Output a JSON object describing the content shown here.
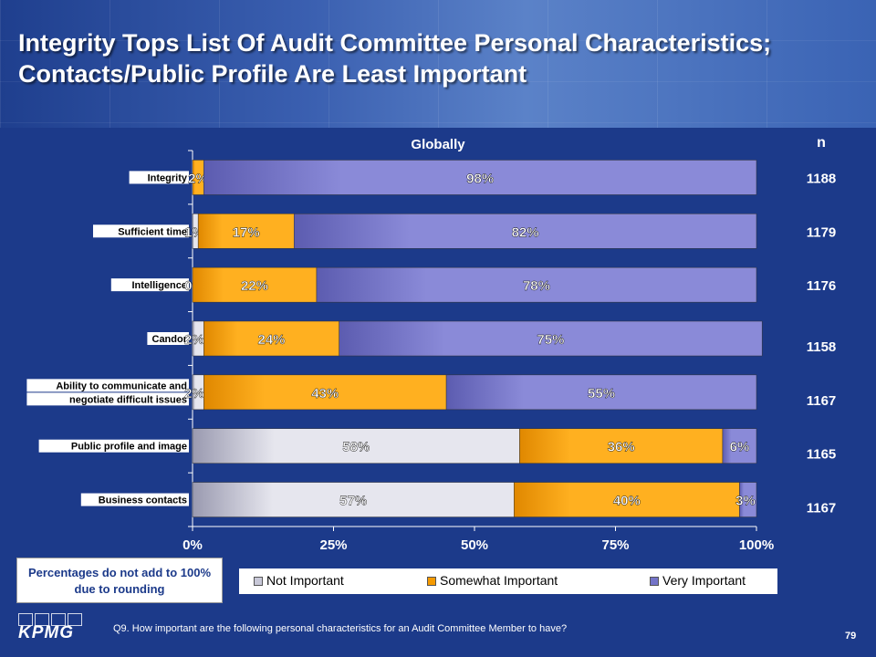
{
  "title": "Integrity Tops List Of Audit Committee Personal Characteristics; Contacts/Public Profile Are Least Important",
  "note": "Percentages do not add to 100% due to rounding",
  "footer": {
    "question": "Q9. How important are the following personal characteristics for an Audit Committee Member to have?",
    "page_number": "79",
    "logo_text": "KPMG"
  },
  "colors": {
    "not_important": "#c8c8d8",
    "somewhat_important": "#f59a00",
    "very_important": "#7474c8",
    "background": "#1c3a8a"
  },
  "chart_data": {
    "type": "bar",
    "orientation": "horizontal",
    "stacked": true,
    "title": "Globally",
    "n_header": "n",
    "categories": [
      "Integrity",
      "Sufficient time",
      "Intelligence",
      "Candor",
      "Ability to communicate and negotiate difficult issues",
      "Public profile and image",
      "Business contacts"
    ],
    "category_lines": [
      [
        "Integrity"
      ],
      [
        "Sufficient time"
      ],
      [
        "Intelligence"
      ],
      [
        "Candor"
      ],
      [
        "Ability to communicate and",
        "negotiate difficult issues"
      ],
      [
        "Public profile and image"
      ],
      [
        "Business contacts"
      ]
    ],
    "n_values": [
      "1188",
      "1179",
      "1176",
      "1158",
      "1167",
      "1165",
      "1167"
    ],
    "series": [
      {
        "name": "Not Important",
        "values": [
          0,
          1,
          0,
          2,
          2,
          58,
          57
        ],
        "labels": [
          "",
          "1%",
          "0%",
          "2%",
          "2%",
          "58%",
          "57%"
        ]
      },
      {
        "name": "Somewhat Important",
        "values": [
          2,
          17,
          22,
          24,
          43,
          36,
          40
        ],
        "labels": [
          "2%",
          "17%",
          "22%",
          "24%",
          "43%",
          "36%",
          "40%"
        ]
      },
      {
        "name": "Very Important",
        "values": [
          98,
          82,
          78,
          75,
          55,
          6,
          3
        ],
        "labels": [
          "98%",
          "82%",
          "78%",
          "75%",
          "55%",
          "6%",
          "3%"
        ]
      }
    ],
    "xlim": [
      0,
      100
    ],
    "xticks": [
      "0%",
      "25%",
      "50%",
      "75%",
      "100%"
    ],
    "legend_position": "bottom"
  }
}
